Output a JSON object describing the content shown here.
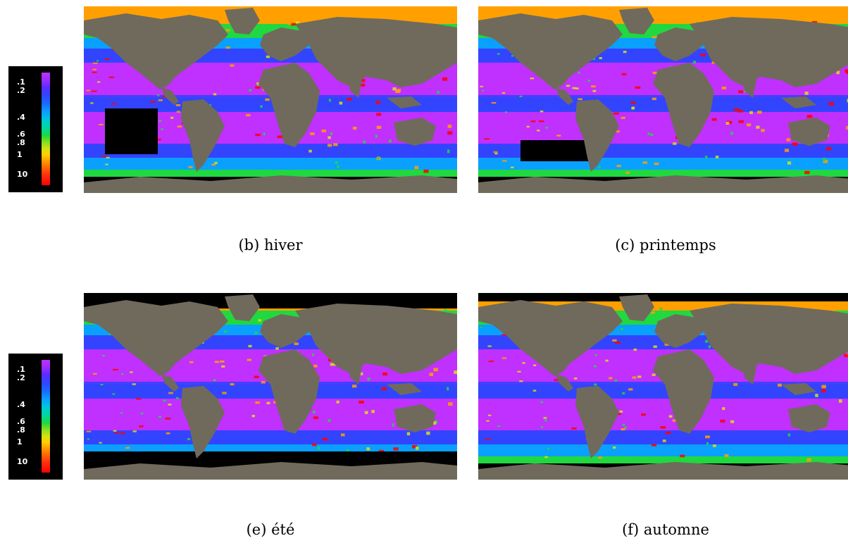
{
  "legend": {
    "ticks": [
      ".1",
      ".2",
      ".4",
      ".6",
      ".8",
      "1",
      "10"
    ]
  },
  "panels": [
    {
      "caption": "(b) hiver"
    },
    {
      "caption": "(c) printemps"
    },
    {
      "caption": "(e) été"
    },
    {
      "caption": "(f) automne"
    }
  ],
  "colors": {
    "land": "#706a5c",
    "no_data": "#000000",
    "scale": [
      "#c030ff",
      "#3344ff",
      "#0aa0ff",
      "#20d840",
      "#d8e010",
      "#ffa000",
      "#ff0000"
    ]
  }
}
